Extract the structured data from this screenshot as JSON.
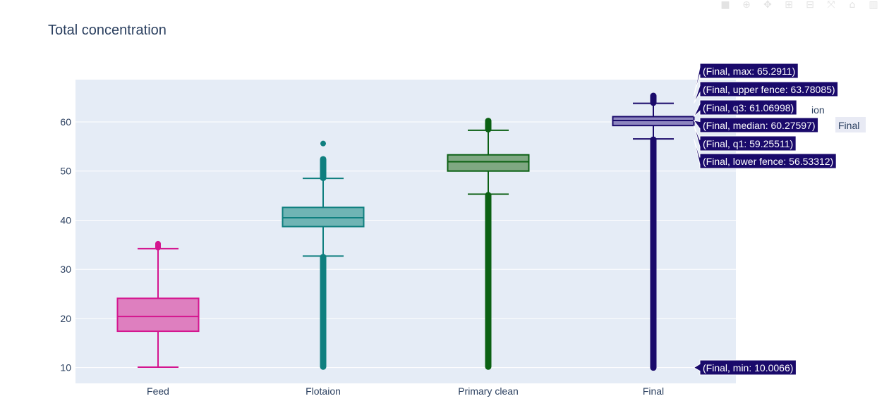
{
  "modebar": [
    {
      "name": "camera-icon",
      "glyph": "■"
    },
    {
      "name": "zoom-icon",
      "glyph": "⊕"
    },
    {
      "name": "pan-icon",
      "glyph": "✥"
    },
    {
      "name": "zoom-in-icon",
      "glyph": "⊞"
    },
    {
      "name": "zoom-out-icon",
      "glyph": "⊟"
    },
    {
      "name": "autoscale-icon",
      "glyph": "⤧"
    },
    {
      "name": "home-icon",
      "glyph": "⌂"
    },
    {
      "name": "plotly-logo-icon",
      "glyph": "▥"
    }
  ],
  "chart_data": {
    "type": "box",
    "title": "Total concentration",
    "xlabel": "",
    "ylabel": "",
    "categories": [
      "Feed",
      "Flotaion",
      "Primary clean",
      "Final"
    ],
    "ylim": [
      6.8,
      68.6
    ],
    "yticks": [
      10,
      20,
      30,
      40,
      50,
      60
    ],
    "grid": true,
    "series": [
      {
        "category": "Feed",
        "color": "#d4158f",
        "fill": "#de7fbf",
        "lower_fence": 10.1,
        "q1": 17.4,
        "median": 20.4,
        "q3": 24.1,
        "upper_fence": 34.2,
        "outliers": [
          34.4,
          34.6,
          34.8,
          35.0,
          35.2
        ]
      },
      {
        "category": "Flotaion",
        "color": "#0f7f7f",
        "fill": "#6fb4b4",
        "lower_fence": 32.7,
        "q1": 38.7,
        "median": 40.5,
        "q3": 42.6,
        "upper_fence": 48.5,
        "outliers_range": [
          [
            10.2,
            32.5
          ],
          [
            48.6,
            52.4
          ]
        ],
        "outliers": [
          55.6
        ]
      },
      {
        "category": "Primary clean",
        "color": "#0b6013",
        "fill": "#7fa882",
        "lower_fence": 45.3,
        "q1": 50.0,
        "median": 51.9,
        "q3": 53.3,
        "upper_fence": 58.3,
        "outliers_range": [
          [
            10.2,
            45.1
          ],
          [
            58.5,
            60.2
          ]
        ]
      },
      {
        "category": "Final",
        "color": "#1a0a6b",
        "fill": "#8d86bf",
        "min": 10.0066,
        "lower_fence": 56.53312,
        "q1": 59.25511,
        "median": 60.27597,
        "q3": 61.06998,
        "upper_fence": 63.78085,
        "max": 65.2911,
        "outliers_range": [
          [
            10.0,
            56.4
          ],
          [
            63.9,
            65.3
          ]
        ]
      }
    ],
    "hover_labels": [
      {
        "text": "(Final, max: 65.2911)",
        "value": 65.2911
      },
      {
        "text": "(Final, upper fence: 63.78085)",
        "value": 63.78085
      },
      {
        "text": "(Final, q3: 61.06998)",
        "value": 61.06998
      },
      {
        "text": "(Final, median: 60.27597)",
        "value": 60.27597
      },
      {
        "text": "(Final, q1: 59.25511)",
        "value": 59.25511
      },
      {
        "text": "(Final, lower fence: 56.53312)",
        "value": 56.53312
      },
      {
        "text": "(Final, min: 10.0066)",
        "value": 10.0066
      }
    ],
    "hover_name_label": "Final",
    "legend_partial": "ion"
  }
}
